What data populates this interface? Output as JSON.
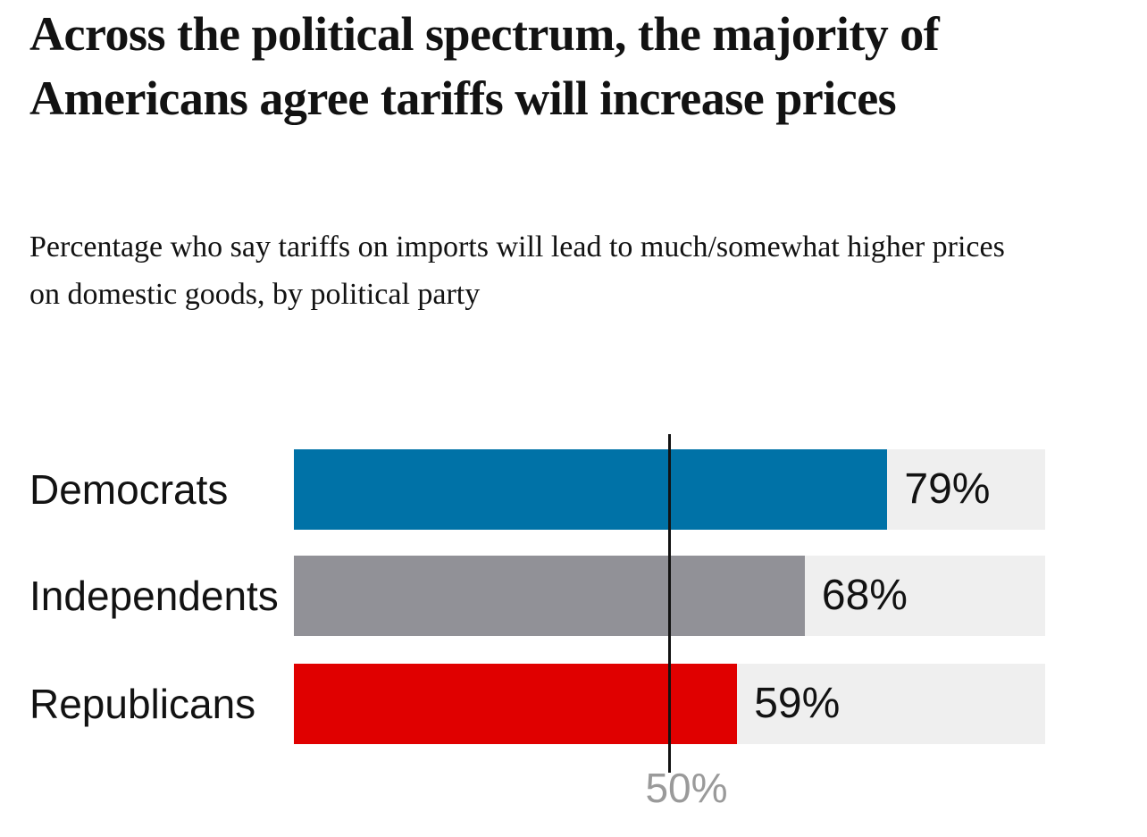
{
  "header": {
    "title": "Across the political spectrum, the majority of Americans agree tariffs will increase prices",
    "subtitle": "Percentage who say tariffs on imports will lead to much/somewhat higher prices on domestic goods, by political party"
  },
  "chart_data": {
    "type": "bar",
    "orientation": "horizontal",
    "title": "Across the political spectrum, the majority of Americans agree tariffs will increase prices",
    "subtitle": "Percentage who say tariffs on imports will lead to much/somewhat higher prices on domestic goods, by political party",
    "categories": [
      "Democrats",
      "Independents",
      "Republicans"
    ],
    "values": [
      79,
      68,
      59
    ],
    "value_labels": [
      "79%",
      "68%",
      "59%"
    ],
    "bar_colors": [
      "#0072a7",
      "#919197",
      "#e00000"
    ],
    "track_color": "#efefef",
    "xlim": [
      0,
      100
    ],
    "grid": false,
    "legend": false,
    "reference_line": {
      "value": 50,
      "label": "50%",
      "line_color": "#121212",
      "label_color": "#9a9a9a"
    },
    "text_color": "#121212"
  }
}
